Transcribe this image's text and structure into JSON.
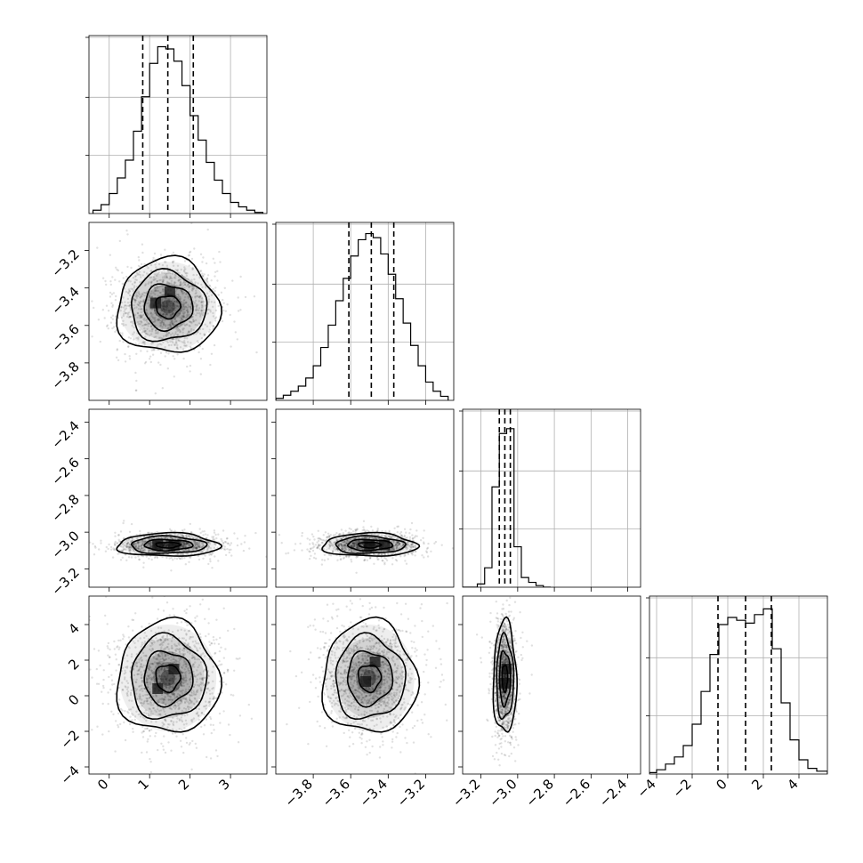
{
  "chart_data": {
    "type": "corner",
    "parameters": [
      {
        "index": 0,
        "range": [
          -0.5,
          3.9
        ],
        "ticks": [
          0,
          1,
          2,
          3
        ],
        "tick_labels": [
          "0",
          "1",
          "2",
          "3"
        ],
        "mean": 1.45,
        "sd": 0.6,
        "quantiles": [
          0.83,
          1.45,
          2.08
        ],
        "hist": {
          "bins": [
            -0.4,
            -0.2,
            0.0,
            0.2,
            0.4,
            0.6,
            0.8,
            1.0,
            1.2,
            1.4,
            1.6,
            1.8,
            2.0,
            2.2,
            2.4,
            2.6,
            2.8,
            3.0,
            3.2,
            3.4,
            3.6,
            3.8
          ],
          "counts": [
            3,
            8,
            18,
            32,
            48,
            74,
            105,
            135,
            150,
            148,
            137,
            115,
            88,
            66,
            46,
            30,
            18,
            10,
            6,
            3,
            1
          ],
          "max": 160
        }
      },
      {
        "index": 1,
        "range": [
          -4.0,
          -3.05
        ],
        "ticks": [
          -3.8,
          -3.6,
          -3.4,
          -3.2
        ],
        "tick_labels": [
          "−3.8",
          "−3.6",
          "−3.4",
          "−3.2"
        ],
        "mean": -3.5,
        "sd": 0.12,
        "quantiles": [
          -3.61,
          -3.49,
          -3.37
        ],
        "hist": {
          "bins": [
            -4.0,
            -3.96,
            -3.92,
            -3.88,
            -3.84,
            -3.8,
            -3.76,
            -3.72,
            -3.68,
            -3.64,
            -3.6,
            -3.56,
            -3.52,
            -3.48,
            -3.44,
            -3.4,
            -3.36,
            -3.32,
            -3.28,
            -3.24,
            -3.2,
            -3.16,
            -3.12,
            -3.08
          ],
          "counts": [
            2,
            5,
            9,
            14,
            22,
            34,
            52,
            74,
            98,
            120,
            142,
            158,
            164,
            160,
            144,
            124,
            100,
            76,
            54,
            34,
            18,
            9,
            4
          ],
          "max": 175
        }
      },
      {
        "index": 2,
        "range": [
          -3.3,
          -2.33
        ],
        "ticks": [
          -3.2,
          -3.0,
          -2.8,
          -2.6,
          -2.4
        ],
        "tick_labels": [
          "−3.2",
          "−3.0",
          "−2.8",
          "−2.6",
          "−2.4"
        ],
        "mean": -3.07,
        "sd": 0.03,
        "quantiles": [
          -3.1,
          -3.07,
          -3.04
        ],
        "hist": {
          "bins": [
            -3.3,
            -3.26,
            -3.22,
            -3.18,
            -3.14,
            -3.1,
            -3.06,
            -3.02,
            -2.98,
            -2.94,
            -2.9,
            -2.86,
            -2.82
          ],
          "counts": [
            0,
            0,
            2,
            12,
            62,
            95,
            98,
            25,
            6,
            3,
            1,
            0
          ],
          "max": 110
        }
      },
      {
        "index": 3,
        "range": [
          -4.4,
          5.6
        ],
        "ticks": [
          -4,
          -2,
          0,
          2,
          4
        ],
        "tick_labels": [
          "−4",
          "−2",
          "0",
          "2",
          "4"
        ],
        "mean": 1.0,
        "sd": 1.5,
        "quantiles": [
          -0.55,
          1.0,
          2.45
        ],
        "hist": {
          "bins": [
            -4.4,
            -4.0,
            -3.5,
            -3.0,
            -2.5,
            -2.0,
            -1.5,
            -1.0,
            -0.5,
            0.0,
            0.5,
            1.0,
            1.5,
            2.0,
            2.5,
            3.0,
            3.5,
            4.0,
            4.5,
            5.0,
            5.6
          ],
          "counts": [
            1,
            3,
            7,
            12,
            20,
            35,
            58,
            84,
            105,
            110,
            108,
            106,
            112,
            116,
            88,
            50,
            24,
            10,
            4,
            2
          ],
          "max": 125
        }
      }
    ],
    "panels": [
      {
        "x": 0,
        "y": 1,
        "peaks": [
          [
            1.15,
            -3.48
          ],
          [
            1.5,
            -3.42
          ]
        ]
      },
      {
        "x": 0,
        "y": 2,
        "peaks": [
          [
            1.2,
            -3.07
          ],
          [
            1.6,
            -3.07
          ]
        ]
      },
      {
        "x": 1,
        "y": 2,
        "peaks": [
          [
            -3.5,
            -3.07
          ],
          [
            -3.42,
            -3.07
          ]
        ]
      },
      {
        "x": 0,
        "y": 3,
        "peaks": [
          [
            1.2,
            0.4
          ],
          [
            1.6,
            1.5
          ]
        ]
      },
      {
        "x": 1,
        "y": 3,
        "peaks": [
          [
            -3.52,
            0.8
          ],
          [
            -3.47,
            1.9
          ]
        ]
      },
      {
        "x": 2,
        "y": 3,
        "peaks": [
          [
            -3.07,
            0.7
          ],
          [
            -3.06,
            1.5
          ]
        ]
      }
    ],
    "grid": true,
    "legend": "none"
  }
}
